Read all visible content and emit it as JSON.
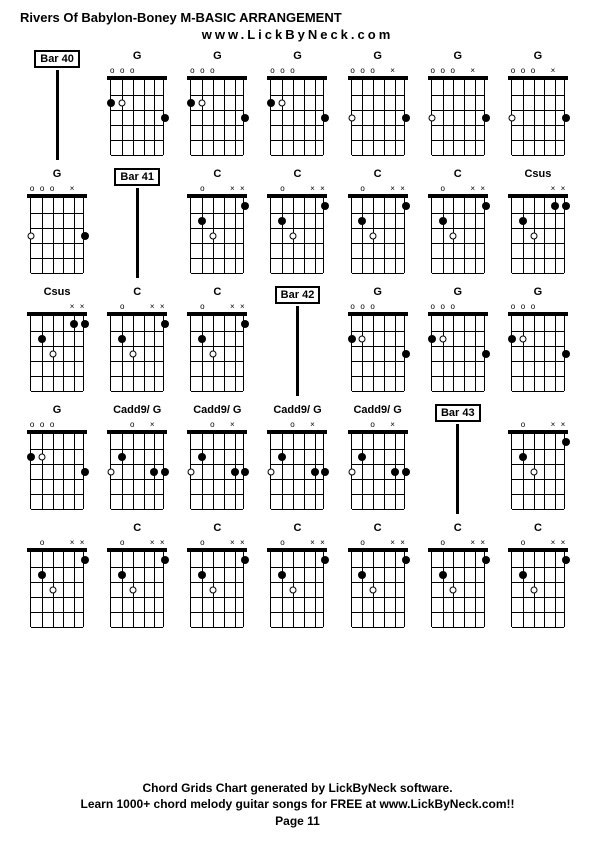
{
  "title": "Rivers Of Babylon-Boney M-BASIC ARRANGEMENT",
  "subtitle": "www.LickByNeck.com",
  "footer_line1": "Chord Grids Chart generated by LickByNeck software.",
  "footer_line2": "Learn 1000+ chord melody guitar songs for FREE at www.LickByNeck.com!!",
  "footer_page": "Page 11",
  "frets": 5,
  "strings": 6,
  "cells": [
    {
      "type": "bar",
      "label": "Bar 40"
    },
    {
      "type": "chord",
      "label": "G",
      "nut": [
        "",
        "",
        "",
        "o",
        "o",
        "o"
      ],
      "dots": [
        {
          "s": 5,
          "f": 2
        },
        {
          "s": 0,
          "f": 3
        }
      ],
      "odots": [
        {
          "s": 4,
          "f": 2
        }
      ]
    },
    {
      "type": "chord",
      "label": "G",
      "nut": [
        "",
        "",
        "",
        "o",
        "o",
        "o"
      ],
      "dots": [
        {
          "s": 5,
          "f": 2
        },
        {
          "s": 0,
          "f": 3
        }
      ],
      "odots": [
        {
          "s": 4,
          "f": 2
        }
      ]
    },
    {
      "type": "chord",
      "label": "G",
      "nut": [
        "",
        "",
        "",
        "o",
        "o",
        "o"
      ],
      "dots": [
        {
          "s": 5,
          "f": 2
        },
        {
          "s": 0,
          "f": 3
        }
      ],
      "odots": [
        {
          "s": 4,
          "f": 2
        }
      ]
    },
    {
      "type": "chord",
      "label": "G",
      "nut": [
        "",
        "x",
        "",
        "o",
        "o",
        "o"
      ],
      "dots": [
        {
          "s": 0,
          "f": 3
        }
      ],
      "odots": [
        {
          "s": 5,
          "f": 3
        }
      ]
    },
    {
      "type": "chord",
      "label": "G",
      "nut": [
        "",
        "x",
        "",
        "o",
        "o",
        "o"
      ],
      "dots": [
        {
          "s": 0,
          "f": 3
        }
      ],
      "odots": [
        {
          "s": 5,
          "f": 3
        }
      ]
    },
    {
      "type": "chord",
      "label": "G",
      "nut": [
        "",
        "x",
        "",
        "o",
        "o",
        "o"
      ],
      "dots": [
        {
          "s": 0,
          "f": 3
        }
      ],
      "odots": [
        {
          "s": 5,
          "f": 3
        }
      ]
    },
    {
      "type": "chord",
      "label": "G",
      "nut": [
        "",
        "x",
        "",
        "o",
        "o",
        "o"
      ],
      "dots": [
        {
          "s": 0,
          "f": 3
        }
      ],
      "odots": [
        {
          "s": 5,
          "f": 3
        }
      ]
    },
    {
      "type": "bar",
      "label": "Bar 41"
    },
    {
      "type": "chord",
      "label": "C",
      "nut": [
        "x",
        "x",
        "",
        "",
        "o",
        ""
      ],
      "dots": [
        {
          "s": 4,
          "f": 2
        },
        {
          "s": 0,
          "f": 1
        }
      ],
      "odots": [
        {
          "s": 3,
          "f": 3
        }
      ]
    },
    {
      "type": "chord",
      "label": "C",
      "nut": [
        "x",
        "x",
        "",
        "",
        "o",
        ""
      ],
      "dots": [
        {
          "s": 4,
          "f": 2
        },
        {
          "s": 0,
          "f": 1
        }
      ],
      "odots": [
        {
          "s": 3,
          "f": 3
        }
      ]
    },
    {
      "type": "chord",
      "label": "C",
      "nut": [
        "x",
        "x",
        "",
        "",
        "o",
        ""
      ],
      "dots": [
        {
          "s": 4,
          "f": 2
        },
        {
          "s": 0,
          "f": 1
        }
      ],
      "odots": [
        {
          "s": 3,
          "f": 3
        }
      ]
    },
    {
      "type": "chord",
      "label": "C",
      "nut": [
        "x",
        "x",
        "",
        "",
        "o",
        ""
      ],
      "dots": [
        {
          "s": 4,
          "f": 2
        },
        {
          "s": 0,
          "f": 1
        }
      ],
      "odots": [
        {
          "s": 3,
          "f": 3
        }
      ]
    },
    {
      "type": "chord",
      "label": "Csus",
      "nut": [
        "x",
        "x",
        "",
        "",
        "",
        ""
      ],
      "dots": [
        {
          "s": 4,
          "f": 2
        },
        {
          "s": 0,
          "f": 1
        },
        {
          "s": 1,
          "f": 1
        }
      ],
      "odots": [
        {
          "s": 3,
          "f": 3
        }
      ]
    },
    {
      "type": "chord",
      "label": "Csus",
      "nut": [
        "x",
        "x",
        "",
        "",
        "",
        ""
      ],
      "dots": [
        {
          "s": 4,
          "f": 2
        },
        {
          "s": 0,
          "f": 1
        },
        {
          "s": 1,
          "f": 1
        }
      ],
      "odots": [
        {
          "s": 3,
          "f": 3
        }
      ]
    },
    {
      "type": "chord",
      "label": "C",
      "nut": [
        "x",
        "x",
        "",
        "",
        "o",
        ""
      ],
      "dots": [
        {
          "s": 4,
          "f": 2
        },
        {
          "s": 0,
          "f": 1
        }
      ],
      "odots": [
        {
          "s": 3,
          "f": 3
        }
      ]
    },
    {
      "type": "chord",
      "label": "C",
      "nut": [
        "x",
        "x",
        "",
        "",
        "o",
        ""
      ],
      "dots": [
        {
          "s": 4,
          "f": 2
        },
        {
          "s": 0,
          "f": 1
        }
      ],
      "odots": [
        {
          "s": 3,
          "f": 3
        }
      ]
    },
    {
      "type": "bar",
      "label": "Bar 42"
    },
    {
      "type": "chord",
      "label": "G",
      "nut": [
        "",
        "",
        "",
        "o",
        "o",
        "o"
      ],
      "dots": [
        {
          "s": 5,
          "f": 2
        },
        {
          "s": 0,
          "f": 3
        }
      ],
      "odots": [
        {
          "s": 4,
          "f": 2
        }
      ]
    },
    {
      "type": "chord",
      "label": "G",
      "nut": [
        "",
        "",
        "",
        "o",
        "o",
        "o"
      ],
      "dots": [
        {
          "s": 5,
          "f": 2
        },
        {
          "s": 0,
          "f": 3
        }
      ],
      "odots": [
        {
          "s": 4,
          "f": 2
        }
      ]
    },
    {
      "type": "chord",
      "label": "G",
      "nut": [
        "",
        "",
        "",
        "o",
        "o",
        "o"
      ],
      "dots": [
        {
          "s": 5,
          "f": 2
        },
        {
          "s": 0,
          "f": 3
        }
      ],
      "odots": [
        {
          "s": 4,
          "f": 2
        }
      ]
    },
    {
      "type": "chord",
      "label": "G",
      "nut": [
        "",
        "",
        "",
        "o",
        "o",
        "o"
      ],
      "dots": [
        {
          "s": 5,
          "f": 2
        },
        {
          "s": 0,
          "f": 3
        }
      ],
      "odots": [
        {
          "s": 4,
          "f": 2
        }
      ]
    },
    {
      "type": "chord",
      "label": "Cadd9/ G",
      "nut": [
        "",
        "x",
        "",
        "o",
        "",
        ""
      ],
      "dots": [
        {
          "s": 4,
          "f": 2
        },
        {
          "s": 1,
          "f": 3
        },
        {
          "s": 0,
          "f": 3
        }
      ],
      "odots": [
        {
          "s": 5,
          "f": 3
        }
      ]
    },
    {
      "type": "chord",
      "label": "Cadd9/ G",
      "nut": [
        "",
        "x",
        "",
        "o",
        "",
        ""
      ],
      "dots": [
        {
          "s": 4,
          "f": 2
        },
        {
          "s": 1,
          "f": 3
        },
        {
          "s": 0,
          "f": 3
        }
      ],
      "odots": [
        {
          "s": 5,
          "f": 3
        }
      ]
    },
    {
      "type": "chord",
      "label": "Cadd9/ G",
      "nut": [
        "",
        "x",
        "",
        "o",
        "",
        ""
      ],
      "dots": [
        {
          "s": 4,
          "f": 2
        },
        {
          "s": 1,
          "f": 3
        },
        {
          "s": 0,
          "f": 3
        }
      ],
      "odots": [
        {
          "s": 5,
          "f": 3
        }
      ]
    },
    {
      "type": "chord",
      "label": "Cadd9/ G",
      "nut": [
        "",
        "x",
        "",
        "o",
        "",
        ""
      ],
      "dots": [
        {
          "s": 4,
          "f": 2
        },
        {
          "s": 1,
          "f": 3
        },
        {
          "s": 0,
          "f": 3
        }
      ],
      "odots": [
        {
          "s": 5,
          "f": 3
        }
      ]
    },
    {
      "type": "bar",
      "label": "Bar 43"
    },
    {
      "type": "chord",
      "label": "",
      "nut": [
        "x",
        "x",
        "",
        "",
        "o",
        ""
      ],
      "dots": [
        {
          "s": 4,
          "f": 2
        },
        {
          "s": 0,
          "f": 1
        }
      ],
      "odots": [
        {
          "s": 3,
          "f": 3
        }
      ]
    },
    {
      "type": "chord",
      "label": "",
      "nut": [
        "x",
        "x",
        "",
        "",
        "o",
        ""
      ],
      "dots": [
        {
          "s": 4,
          "f": 2
        },
        {
          "s": 0,
          "f": 1
        }
      ],
      "odots": [
        {
          "s": 3,
          "f": 3
        }
      ]
    },
    {
      "type": "chord",
      "label": "C",
      "nut": [
        "x",
        "x",
        "",
        "",
        "o",
        ""
      ],
      "dots": [
        {
          "s": 4,
          "f": 2
        },
        {
          "s": 0,
          "f": 1
        }
      ],
      "odots": [
        {
          "s": 3,
          "f": 3
        }
      ]
    },
    {
      "type": "chord",
      "label": "C",
      "nut": [
        "x",
        "x",
        "",
        "",
        "o",
        ""
      ],
      "dots": [
        {
          "s": 4,
          "f": 2
        },
        {
          "s": 0,
          "f": 1
        }
      ],
      "odots": [
        {
          "s": 3,
          "f": 3
        }
      ]
    },
    {
      "type": "chord",
      "label": "C",
      "nut": [
        "x",
        "x",
        "",
        "",
        "o",
        ""
      ],
      "dots": [
        {
          "s": 4,
          "f": 2
        },
        {
          "s": 0,
          "f": 1
        }
      ],
      "odots": [
        {
          "s": 3,
          "f": 3
        }
      ]
    },
    {
      "type": "chord",
      "label": "C",
      "nut": [
        "x",
        "x",
        "",
        "",
        "o",
        ""
      ],
      "dots": [
        {
          "s": 4,
          "f": 2
        },
        {
          "s": 0,
          "f": 1
        }
      ],
      "odots": [
        {
          "s": 3,
          "f": 3
        }
      ]
    },
    {
      "type": "chord",
      "label": "C",
      "nut": [
        "x",
        "x",
        "",
        "",
        "o",
        ""
      ],
      "dots": [
        {
          "s": 4,
          "f": 2
        },
        {
          "s": 0,
          "f": 1
        }
      ],
      "odots": [
        {
          "s": 3,
          "f": 3
        }
      ]
    },
    {
      "type": "chord",
      "label": "C",
      "nut": [
        "x",
        "x",
        "",
        "",
        "o",
        ""
      ],
      "dots": [
        {
          "s": 4,
          "f": 2
        },
        {
          "s": 0,
          "f": 1
        }
      ],
      "odots": [
        {
          "s": 3,
          "f": 3
        }
      ]
    }
  ]
}
